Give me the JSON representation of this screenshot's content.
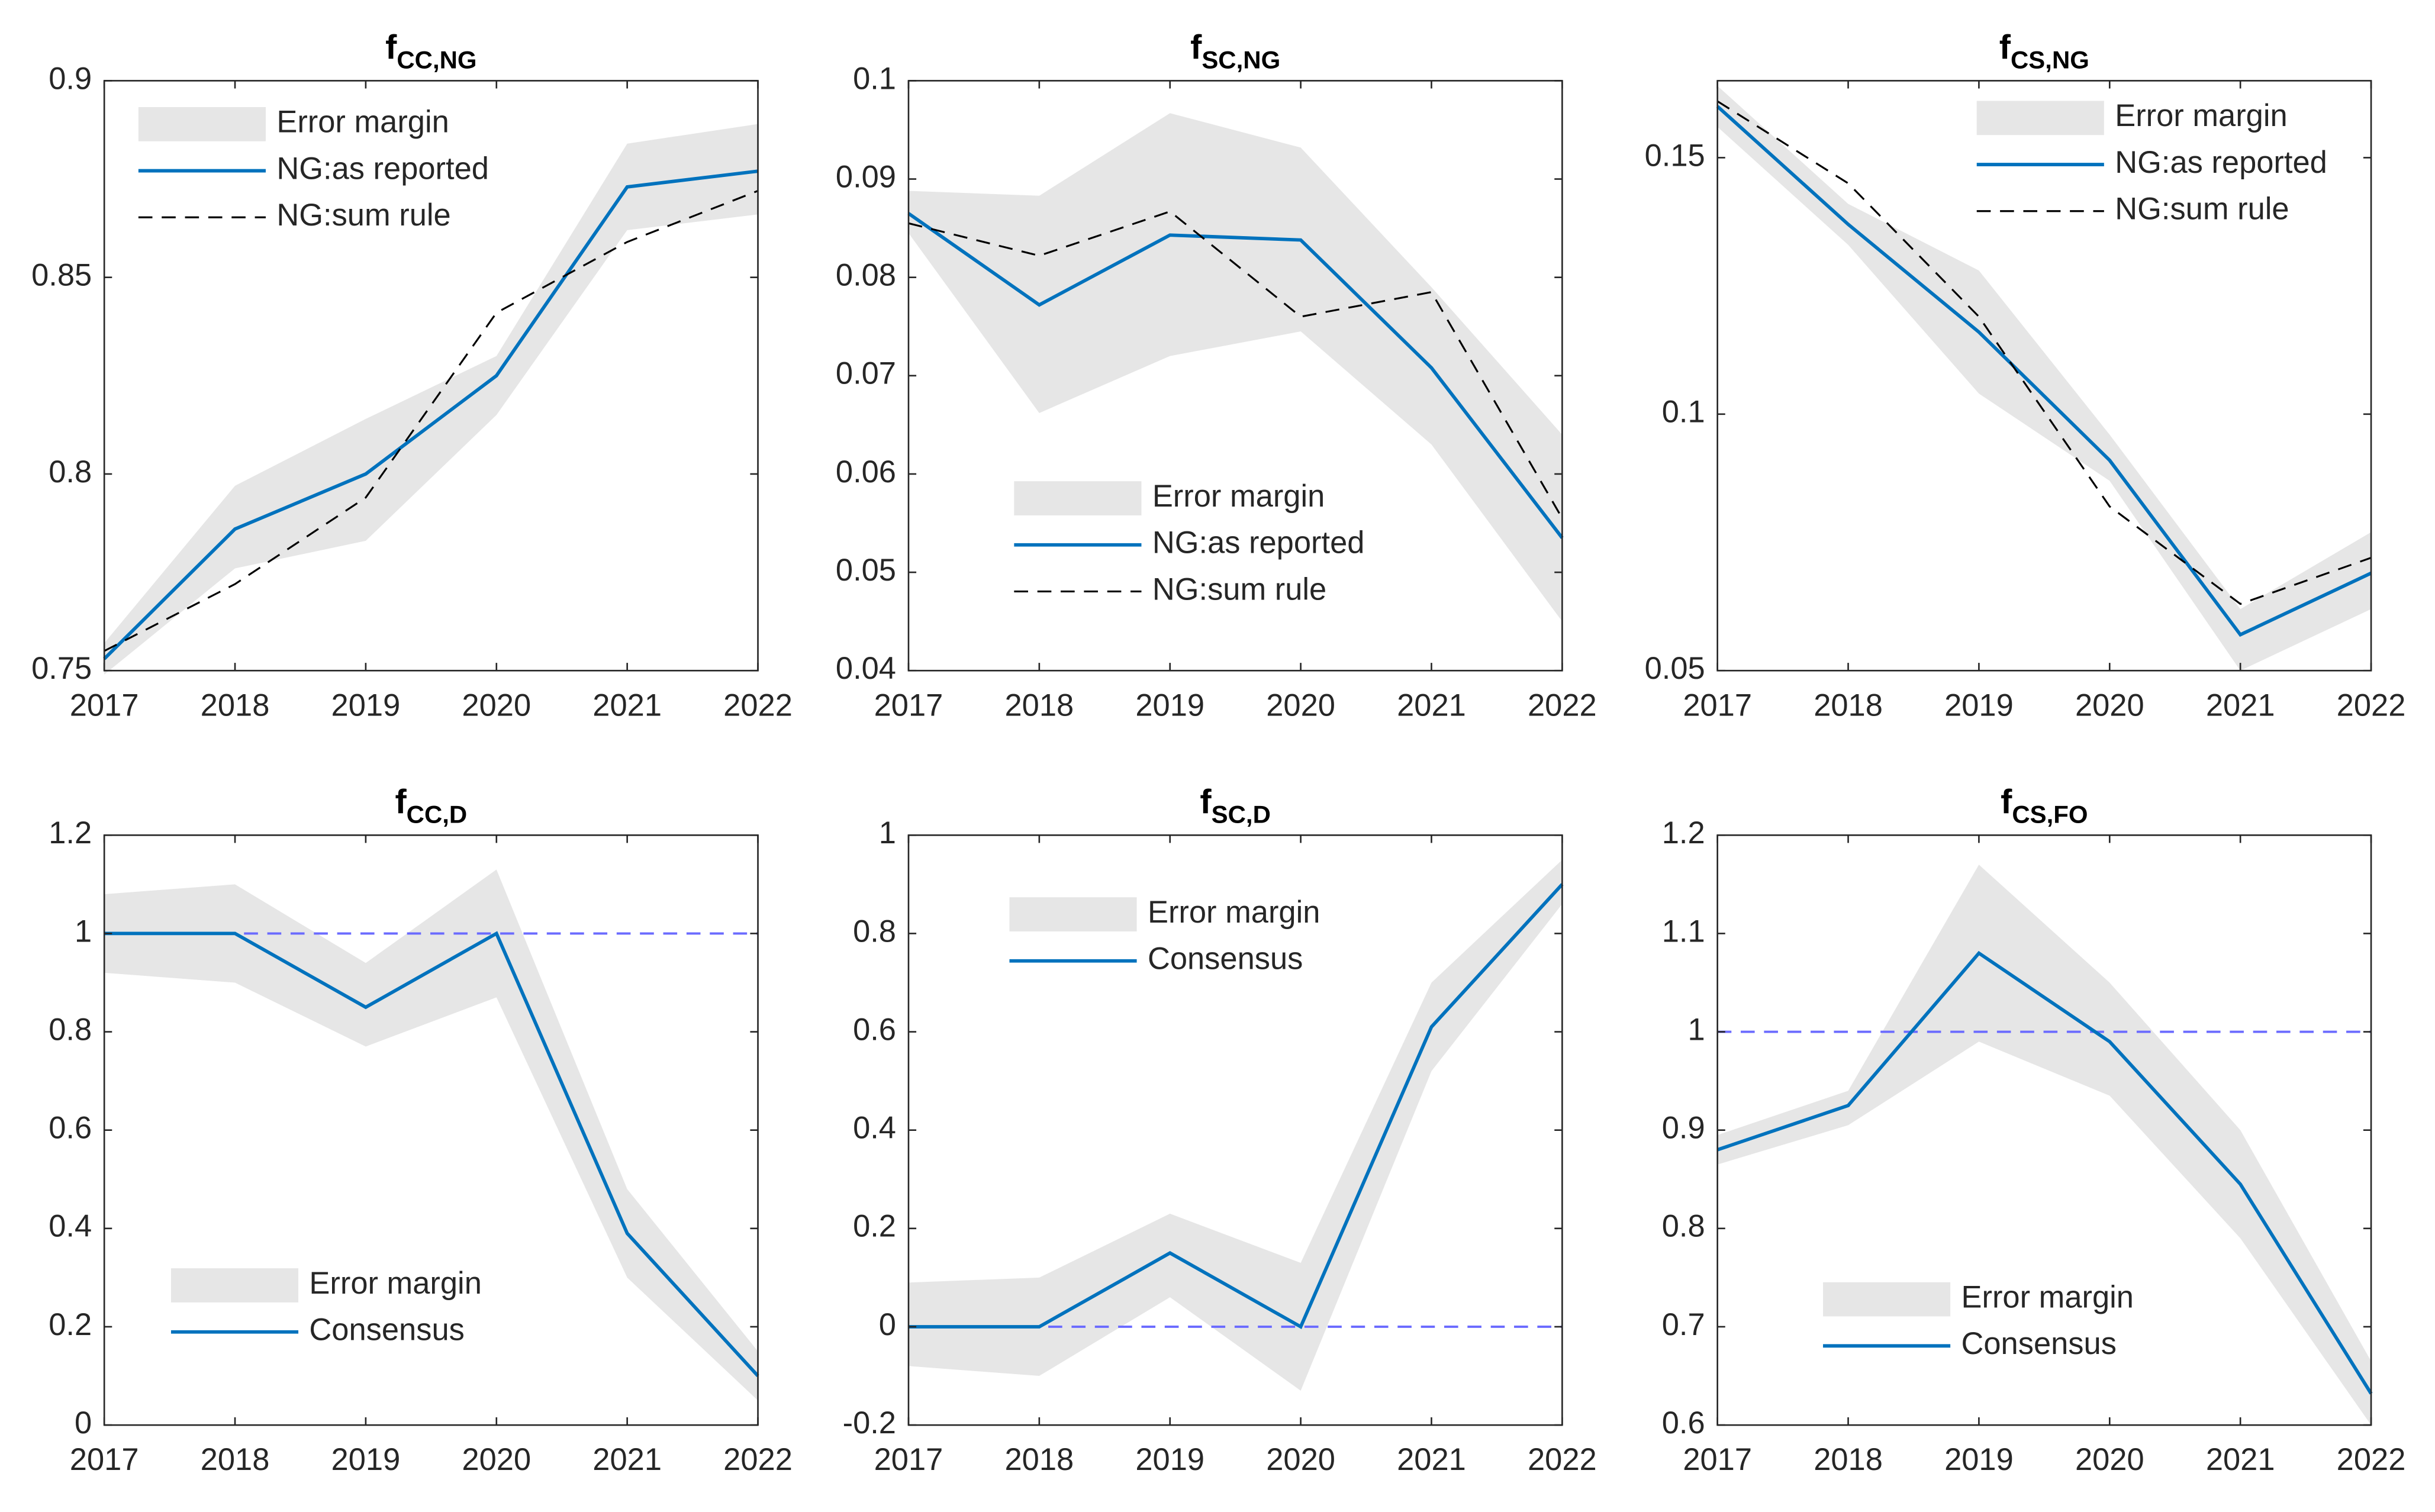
{
  "chart_data": [
    {
      "type": "line",
      "title": "f",
      "title_sub": "CC,NG",
      "x": [
        2017,
        2018,
        2019,
        2020,
        2021,
        2022
      ],
      "xlim": [
        2017,
        2022
      ],
      "xticks": [
        2017,
        2018,
        2019,
        2020,
        2021,
        2022
      ],
      "ylim": [
        0.75,
        0.9
      ],
      "yticks": [
        0.75,
        0.8,
        0.85,
        0.9
      ],
      "legend": "northwest",
      "series": [
        {
          "name": "Error margin",
          "kind": "band",
          "color": "#e6e6e6",
          "upper": [
            0.757,
            0.797,
            0.814,
            0.83,
            0.884,
            0.889
          ],
          "lower": [
            0.749,
            0.776,
            0.783,
            0.815,
            0.862,
            0.866
          ]
        },
        {
          "name": "NG:as reported",
          "kind": "line",
          "color": "#0072bd",
          "linestyle": "-",
          "values": [
            0.753,
            0.786,
            0.8,
            0.825,
            0.873,
            0.877
          ]
        },
        {
          "name": "NG:sum rule",
          "kind": "line",
          "color": "#000000",
          "linestyle": "--",
          "values": [
            0.755,
            0.772,
            0.794,
            0.841,
            0.859,
            0.872
          ]
        }
      ]
    },
    {
      "type": "line",
      "title": "f",
      "title_sub": "SC,NG",
      "x": [
        2017,
        2018,
        2019,
        2020,
        2021,
        2022
      ],
      "xlim": [
        2017,
        2022
      ],
      "xticks": [
        2017,
        2018,
        2019,
        2020,
        2021,
        2022
      ],
      "ylim": [
        0.04,
        0.1
      ],
      "yticks": [
        0.04,
        0.05,
        0.06,
        0.07,
        0.08,
        0.09,
        0.1
      ],
      "legend": "south",
      "series": [
        {
          "name": "Error margin",
          "kind": "band",
          "color": "#e6e6e6",
          "upper": [
            0.0888,
            0.0883,
            0.0967,
            0.0932,
            0.079,
            0.064
          ],
          "lower": [
            0.0845,
            0.0662,
            0.072,
            0.0745,
            0.063,
            0.045
          ]
        },
        {
          "name": "NG:as reported",
          "kind": "line",
          "color": "#0072bd",
          "linestyle": "-",
          "values": [
            0.0865,
            0.0772,
            0.0843,
            0.0838,
            0.0708,
            0.0535
          ]
        },
        {
          "name": "NG:sum rule",
          "kind": "line",
          "color": "#000000",
          "linestyle": "--",
          "values": [
            0.0855,
            0.0822,
            0.0867,
            0.076,
            0.0785,
            0.0555
          ]
        }
      ]
    },
    {
      "type": "line",
      "title": "f",
      "title_sub": "CS,NG",
      "x": [
        2017,
        2018,
        2019,
        2020,
        2021,
        2022
      ],
      "xlim": [
        2017,
        2022
      ],
      "xticks": [
        2017,
        2018,
        2019,
        2020,
        2021,
        2022
      ],
      "ylim": [
        0.05,
        0.165
      ],
      "yticks": [
        0.05,
        0.1,
        0.15
      ],
      "legend": "northeast",
      "series": [
        {
          "name": "Error margin",
          "kind": "band",
          "color": "#e6e6e6",
          "upper": [
            0.164,
            0.141,
            0.128,
            0.096,
            0.062,
            0.077
          ],
          "lower": [
            0.156,
            0.133,
            0.104,
            0.087,
            0.05,
            0.062
          ]
        },
        {
          "name": "NG:as reported",
          "kind": "line",
          "color": "#0072bd",
          "linestyle": "-",
          "values": [
            0.16,
            0.137,
            0.116,
            0.091,
            0.057,
            0.069
          ]
        },
        {
          "name": "NG:sum rule",
          "kind": "line",
          "color": "#000000",
          "linestyle": "--",
          "values": [
            0.161,
            0.145,
            0.119,
            0.082,
            0.063,
            0.072
          ]
        }
      ]
    },
    {
      "type": "line",
      "title": "f",
      "title_sub": "CC,D",
      "x": [
        2017,
        2018,
        2019,
        2020,
        2021,
        2022
      ],
      "xlim": [
        2017,
        2022
      ],
      "xticks": [
        2017,
        2018,
        2019,
        2020,
        2021,
        2022
      ],
      "ylim": [
        0,
        1.2
      ],
      "yticks": [
        0,
        0.2,
        0.4,
        0.6,
        0.8,
        1,
        1.2
      ],
      "legend": "southwest",
      "reference_line": {
        "value": 1,
        "color": "#6b6bff",
        "linestyle": "--"
      },
      "series": [
        {
          "name": "Error margin",
          "kind": "band",
          "color": "#e6e6e6",
          "upper": [
            1.08,
            1.1,
            0.94,
            1.13,
            0.48,
            0.15
          ],
          "lower": [
            0.92,
            0.9,
            0.77,
            0.87,
            0.3,
            0.05
          ]
        },
        {
          "name": "Consensus",
          "kind": "line",
          "color": "#0072bd",
          "linestyle": "-",
          "values": [
            1,
            1,
            0.85,
            1,
            0.39,
            0.1
          ]
        }
      ]
    },
    {
      "type": "line",
      "title": "f",
      "title_sub": "SC,D",
      "x": [
        2017,
        2018,
        2019,
        2020,
        2021,
        2022
      ],
      "xlim": [
        2017,
        2022
      ],
      "xticks": [
        2017,
        2018,
        2019,
        2020,
        2021,
        2022
      ],
      "ylim": [
        -0.2,
        1
      ],
      "yticks": [
        -0.2,
        0,
        0.2,
        0.4,
        0.6,
        0.8,
        1
      ],
      "legend": "north",
      "reference_line": {
        "value": 0,
        "color": "#6b6bff",
        "linestyle": "--"
      },
      "series": [
        {
          "name": "Error margin",
          "kind": "band",
          "color": "#e6e6e6",
          "upper": [
            0.09,
            0.1,
            0.23,
            0.13,
            0.7,
            0.95
          ],
          "lower": [
            -0.08,
            -0.1,
            0.06,
            -0.13,
            0.52,
            0.86
          ]
        },
        {
          "name": "Consensus",
          "kind": "line",
          "color": "#0072bd",
          "linestyle": "-",
          "values": [
            0,
            0,
            0.15,
            0,
            0.61,
            0.9
          ]
        }
      ]
    },
    {
      "type": "line",
      "title": "f",
      "title_sub": "CS,FO",
      "x": [
        2017,
        2018,
        2019,
        2020,
        2021,
        2022
      ],
      "xlim": [
        2017,
        2022
      ],
      "xticks": [
        2017,
        2018,
        2019,
        2020,
        2021,
        2022
      ],
      "ylim": [
        0.6,
        1.2
      ],
      "yticks": [
        0.6,
        0.7,
        0.8,
        0.9,
        1,
        1.1,
        1.2
      ],
      "legend": "south",
      "reference_line": {
        "value": 1,
        "color": "#6b6bff",
        "linestyle": "--"
      },
      "series": [
        {
          "name": "Error margin",
          "kind": "band",
          "color": "#e6e6e6",
          "upper": [
            0.895,
            0.94,
            1.17,
            1.05,
            0.9,
            0.665
          ],
          "lower": [
            0.865,
            0.905,
            0.99,
            0.935,
            0.79,
            0.6
          ]
        },
        {
          "name": "Consensus",
          "kind": "line",
          "color": "#0072bd",
          "linestyle": "-",
          "values": [
            0.88,
            0.925,
            1.08,
            0.99,
            0.845,
            0.632
          ]
        }
      ]
    }
  ]
}
